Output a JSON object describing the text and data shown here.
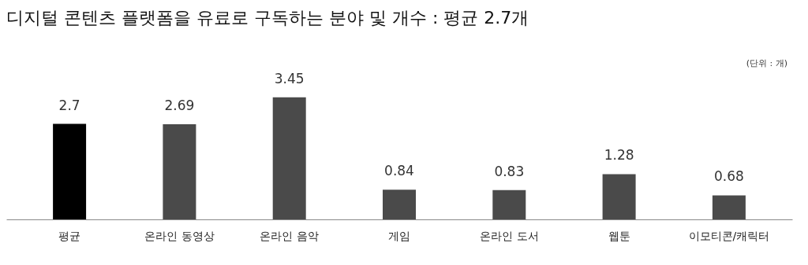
{
  "chart_data": {
    "type": "bar",
    "title": "디지털 콘텐츠 플랫폼을 유료로 구독하는 분야 및 개수 : 평균 2.7개",
    "categories": [
      "평균",
      "온라인 동영상",
      "온라인 음악",
      "게임",
      "온라인 도서",
      "웹툰",
      "이모티콘/캐릭터"
    ],
    "values": [
      2.7,
      2.69,
      3.45,
      0.84,
      0.83,
      1.28,
      0.68
    ],
    "colors": [
      "#000000",
      "#4a4a4a",
      "#4a4a4a",
      "#4a4a4a",
      "#4a4a4a",
      "#4a4a4a",
      "#4a4a4a"
    ],
    "data_labels": true,
    "grid": false,
    "annotations": [
      "(단위 : 개)"
    ]
  }
}
